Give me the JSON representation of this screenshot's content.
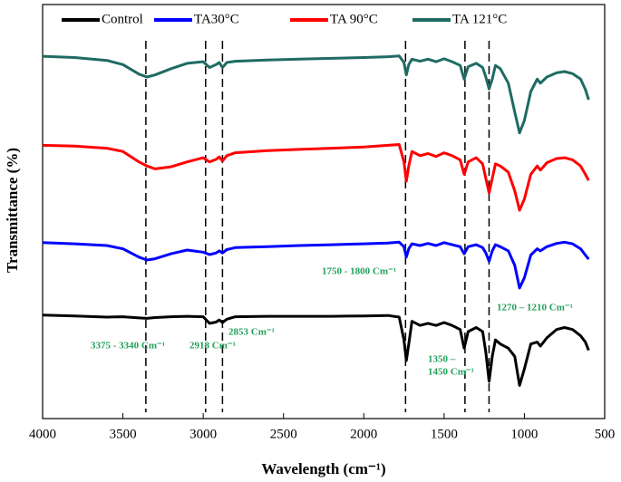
{
  "chart_data": {
    "type": "line",
    "x_label": "Wavelength (cm⁻¹)",
    "y_label": "Transmittance (%)",
    "x": [
      4000,
      3800,
      3600,
      3500,
      3400,
      3350,
      3300,
      3200,
      3100,
      3000,
      2960,
      2920,
      2900,
      2880,
      2853,
      2800,
      2600,
      2400,
      2200,
      2000,
      1850,
      1780,
      1750,
      1735,
      1720,
      1700,
      1650,
      1600,
      1550,
      1500,
      1450,
      1400,
      1375,
      1350,
      1300,
      1260,
      1240,
      1220,
      1200,
      1180,
      1150,
      1100,
      1060,
      1030,
      1000,
      960,
      920,
      900,
      860,
      800,
      750,
      700,
      650,
      620,
      600
    ],
    "xlim": [
      4000,
      500
    ],
    "xticks": [
      4000,
      3500,
      3000,
      2500,
      2000,
      1500,
      1000,
      500
    ],
    "ylim": [
      0,
      100
    ],
    "series": [
      {
        "name": "Control",
        "color": "#000000",
        "values": [
          25,
          24.8,
          24.5,
          24.6,
          24.3,
          24.2,
          24.4,
          24.6,
          24.7,
          24.6,
          23,
          23.3,
          23.8,
          23.2,
          24,
          24.6,
          24.7,
          24.7,
          24.7,
          24.8,
          24.9,
          24.5,
          19,
          14,
          18,
          23.5,
          22.5,
          23,
          22.5,
          23.2,
          22.5,
          21.5,
          17,
          21,
          22,
          21,
          16,
          9,
          15,
          19,
          18,
          17,
          15,
          8,
          12,
          18,
          18.5,
          17.5,
          19.5,
          21.5,
          22,
          21.5,
          20,
          18.5,
          16.5
        ]
      },
      {
        "name": "TA30°C",
        "color": "#0000ff",
        "values": [
          42.5,
          42.2,
          41.8,
          41,
          39,
          38.3,
          38.6,
          39.8,
          40.7,
          40.2,
          39.6,
          40,
          40.5,
          40,
          40.8,
          41.3,
          41.5,
          41.8,
          42,
          42.2,
          42.4,
          42.6,
          41.5,
          39,
          41,
          42.2,
          41.8,
          42.3,
          41.8,
          42.5,
          42,
          41.5,
          39.8,
          41.5,
          42,
          41.3,
          40,
          38,
          40.5,
          42,
          41.5,
          40.5,
          37,
          31.5,
          34,
          39.5,
          41,
          40.5,
          41.5,
          42.3,
          42.6,
          42.2,
          41,
          39.5,
          38.5
        ]
      },
      {
        "name": "TA 90°C",
        "color": "#ff0000",
        "values": [
          66,
          65.8,
          65.3,
          64.5,
          62,
          61,
          60.3,
          60.8,
          62,
          63,
          62,
          62.6,
          63.2,
          62.2,
          63.5,
          64.2,
          64.7,
          65,
          65.3,
          65.6,
          66,
          66.2,
          62,
          57.3,
          61,
          64.5,
          63.5,
          64,
          63.3,
          64.2,
          63.5,
          62.5,
          59,
          62,
          63,
          61.5,
          58,
          54.5,
          58,
          61.5,
          61,
          59.5,
          55,
          50.3,
          53,
          59,
          61,
          60,
          61.8,
          62.8,
          63,
          62.5,
          61,
          59,
          57.5
        ]
      },
      {
        "name": "TA 121°C",
        "color": "#1f6b63",
        "values": [
          87.5,
          87.2,
          86.5,
          85.5,
          83.2,
          82.5,
          83,
          84.5,
          85.8,
          86.2,
          84.8,
          85.5,
          86,
          84.8,
          86,
          86.3,
          86.6,
          86.8,
          87,
          87.2,
          87.4,
          87.6,
          86,
          83,
          85.5,
          86.8,
          86.3,
          86.8,
          86.2,
          86.9,
          86.2,
          85.3,
          82,
          85,
          85.8,
          84.8,
          82.5,
          79.6,
          82,
          85.3,
          84.5,
          81,
          74,
          69,
          72,
          79,
          82,
          81,
          82.5,
          83.5,
          83.8,
          83.3,
          82,
          79.5,
          77
        ]
      }
    ],
    "reference_lines": [
      3357,
      2985,
      2880,
      1740,
      1370,
      1220
    ],
    "annotations": [
      "3375 - 3340 Cm⁻¹",
      "2918 Cm⁻¹",
      "2853 Cm⁻¹",
      "1750 - 1800 Cm⁻¹",
      "1350 –",
      "1450 Cm⁻¹",
      "1270 – 1210 Cm⁻¹"
    ]
  }
}
